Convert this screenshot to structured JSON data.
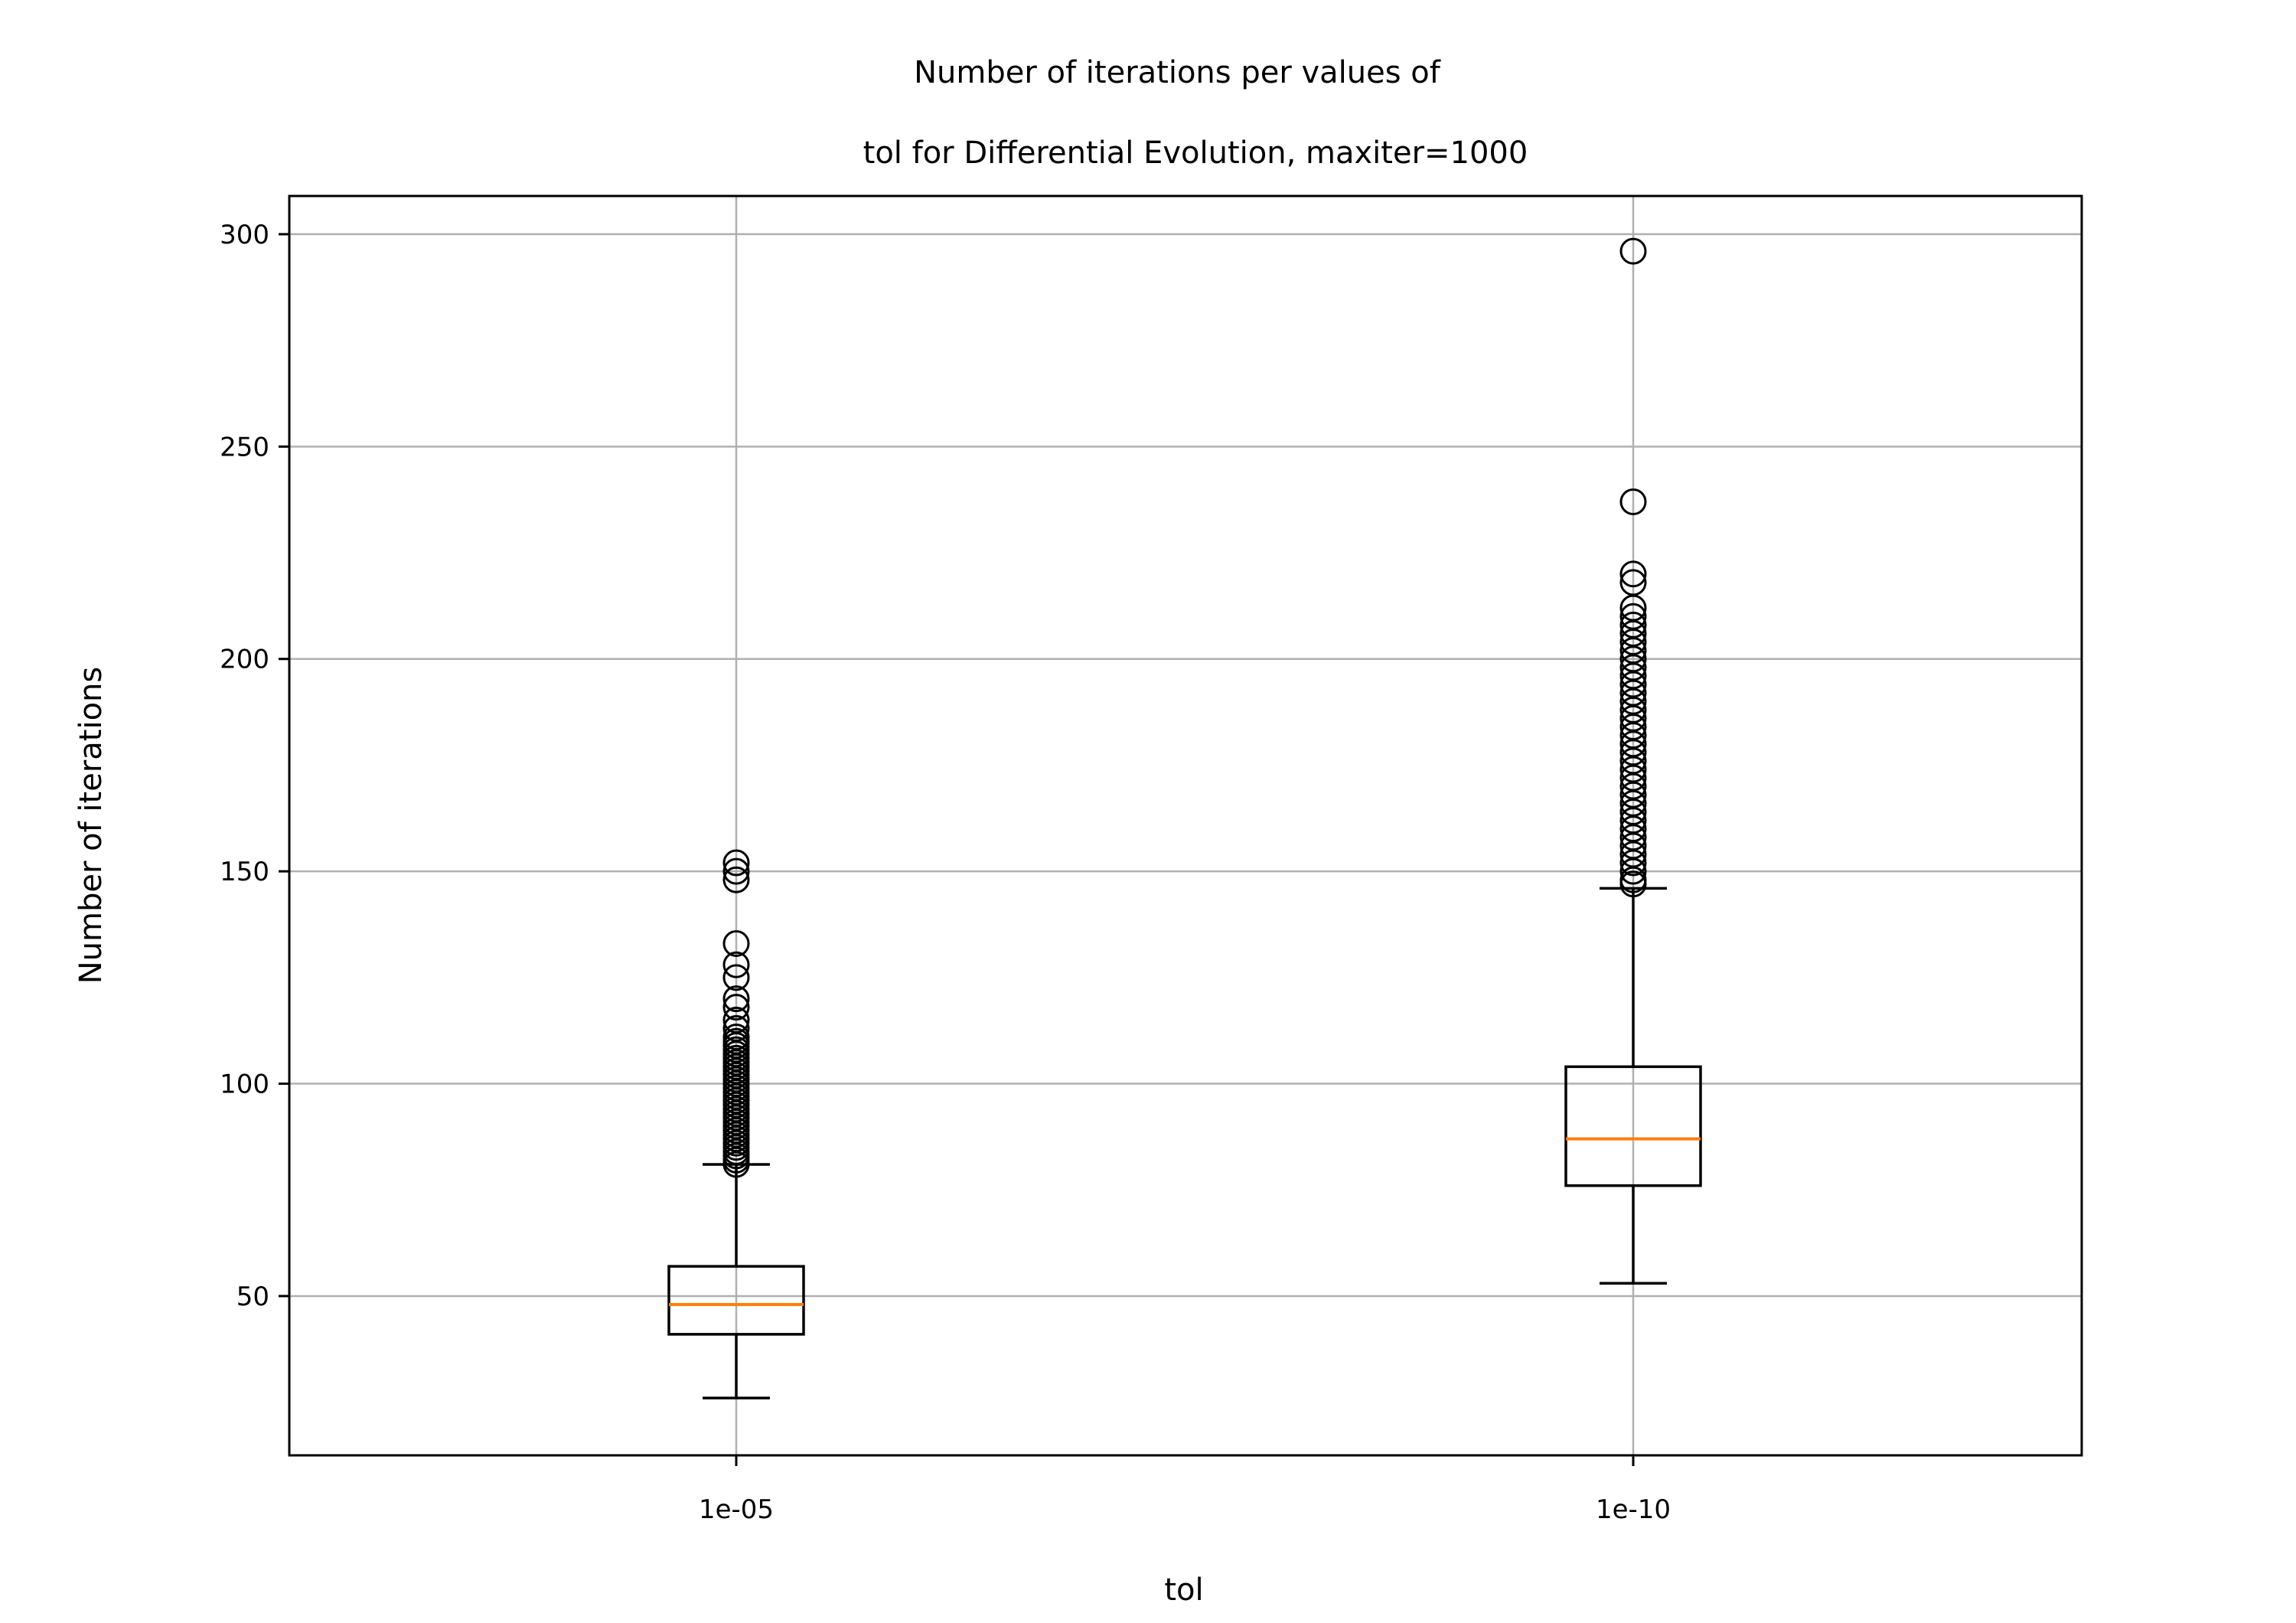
{
  "chart_data": {
    "type": "box",
    "title_lines": [
      "Number of iterations per values of",
      "tol for Differential Evolution, maxiter=1000"
    ],
    "xlabel": "tol",
    "ylabel": "Number of iterations",
    "categories": [
      "1e-05",
      "1e-10"
    ],
    "ylim": [
      12.5,
      309
    ],
    "yticks": [
      50,
      100,
      150,
      200,
      250,
      300
    ],
    "grid": true,
    "colors": {
      "box": "#000000",
      "median": "#ff7f0e",
      "grid": "#b0b0b0"
    },
    "boxes": [
      {
        "category": "1e-05",
        "whisker_low": 26,
        "q1": 41,
        "median": 48,
        "q3": 57,
        "whisker_high": 81,
        "outliers": [
          81,
          82,
          83,
          84,
          85,
          86,
          87,
          88,
          89,
          90,
          91,
          92,
          93,
          94,
          95,
          96,
          97,
          98,
          99,
          100,
          101,
          102,
          103,
          104,
          105,
          106,
          107,
          108,
          109,
          110,
          111,
          113,
          115,
          118,
          120,
          125,
          128,
          133,
          148,
          150,
          152
        ]
      },
      {
        "category": "1e-10",
        "whisker_low": 53,
        "q1": 76,
        "median": 87,
        "q3": 104,
        "whisker_high": 146,
        "outliers": [
          147,
          148,
          150,
          152,
          154,
          156,
          158,
          160,
          162,
          164,
          166,
          168,
          170,
          172,
          174,
          176,
          178,
          180,
          182,
          184,
          186,
          188,
          190,
          192,
          194,
          196,
          198,
          200,
          202,
          204,
          206,
          208,
          210,
          212,
          218,
          220,
          237,
          296
        ]
      }
    ]
  }
}
